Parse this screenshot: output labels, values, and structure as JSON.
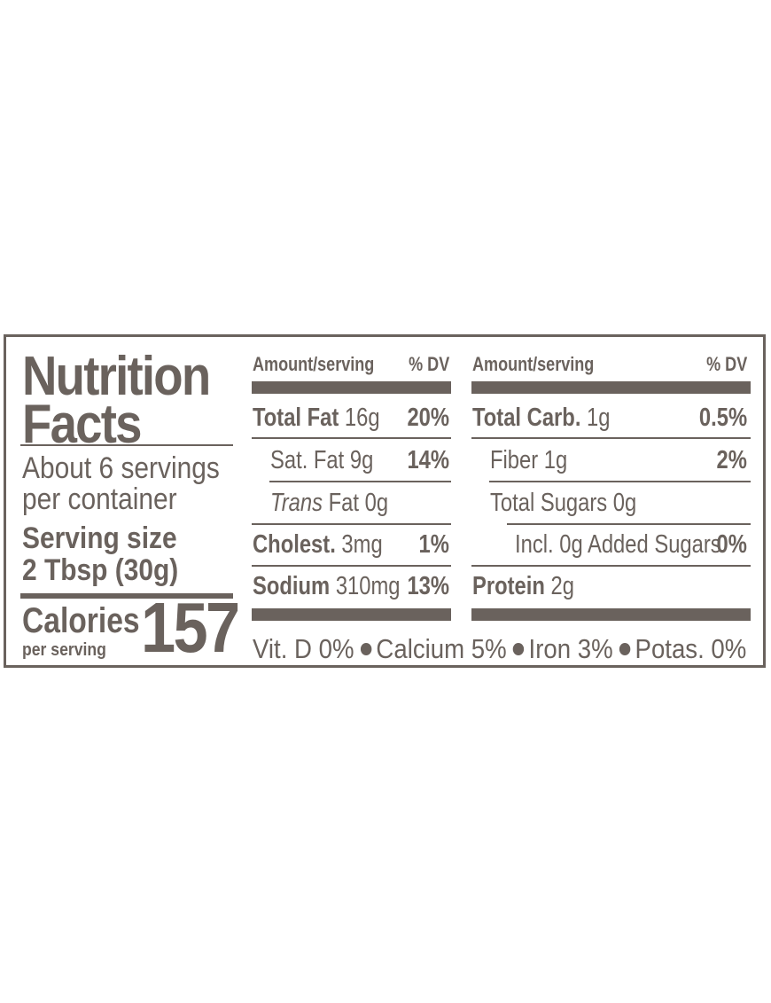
{
  "colors": {
    "ink": "#6a625d",
    "background": "#ffffff"
  },
  "label": {
    "title_line1": "Nutrition",
    "title_line2": "Facts",
    "servings_line1": "About 6 servings",
    "servings_line2": "per container",
    "serving_size_label": "Serving size",
    "serving_size_value": "2 Tbsp (30g)",
    "calories_label": "Calories",
    "calories_sub": "per serving",
    "calories_value": "157",
    "left_col": {
      "header_amount": "Amount/serving",
      "header_dv": "% DV",
      "rows": [
        {
          "name": "Total Fat",
          "amount": "16g",
          "dv": "20%"
        },
        {
          "name": "Sat. Fat",
          "amount": "9g",
          "dv": "14%"
        },
        {
          "name": "Trans",
          "suffix": "Fat",
          "amount": "0g",
          "dv": ""
        },
        {
          "name": "Cholest.",
          "amount": "3mg",
          "dv": "1%"
        },
        {
          "name": "Sodium",
          "amount": "310mg",
          "dv": "13%"
        }
      ]
    },
    "right_col": {
      "header_amount": "Amount/serving",
      "header_dv": "% DV",
      "rows": [
        {
          "name": "Total Carb.",
          "amount": "1g",
          "dv": "0.5%"
        },
        {
          "name": "Fiber",
          "amount": "1g",
          "dv": "2%"
        },
        {
          "name": "Total Sugars",
          "amount": "0g",
          "dv": ""
        },
        {
          "name": "Incl. 0g Added Sugars",
          "amount": "",
          "dv": "0%"
        },
        {
          "name": "Protein",
          "amount": "2g",
          "dv": ""
        }
      ]
    },
    "footer": {
      "vitd": "Vit. D 0%",
      "calcium": "Calcium 5%",
      "iron": "Iron 3%",
      "potas": "Potas. 0%"
    }
  }
}
